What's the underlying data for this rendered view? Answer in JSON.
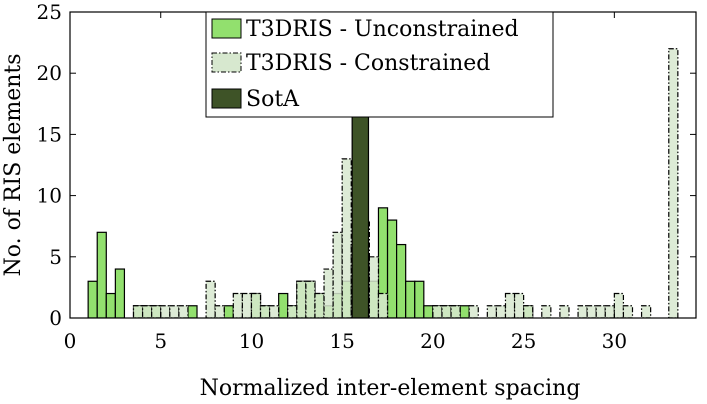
{
  "chart_data": {
    "type": "bar",
    "xlabel": "Normalized inter-element spacing",
    "ylabel": "No. of RIS elements",
    "xlim": [
      0,
      34.5
    ],
    "ylim": [
      0,
      25
    ],
    "xticks": [
      0,
      5,
      10,
      15,
      20,
      25,
      30
    ],
    "yticks": [
      0,
      5,
      10,
      15,
      20,
      25
    ],
    "bin_width": 0.5,
    "grid": false,
    "legend_position": "top-center",
    "series": [
      {
        "name": "T3DRIS - Unconstrained",
        "style": "solid",
        "color": "#92e06e",
        "edge": "#000000",
        "x": [
          1.25,
          1.75,
          2.25,
          2.75,
          3.75,
          4.25,
          4.75,
          6.75,
          8.75,
          10.25,
          10.75,
          11.75,
          12.25,
          12.75,
          13.25,
          13.75,
          14.25,
          14.75,
          15.25,
          16.25,
          16.75,
          17.25,
          17.75,
          18.25,
          18.75,
          19.25,
          19.75,
          20.25,
          20.75,
          21.25,
          21.75,
          25.25
        ],
        "values": [
          3,
          7,
          2,
          4,
          1,
          1,
          1,
          1,
          1,
          2,
          1,
          2,
          1,
          3,
          3,
          2,
          1,
          2,
          3,
          5,
          3,
          9,
          8,
          6,
          3,
          3,
          1,
          1,
          1,
          1,
          1,
          1
        ]
      },
      {
        "name": "T3DRIS - Constrained",
        "style": "dashdot",
        "color": "#d7e8cf",
        "edge": "#000000",
        "x": [
          3.75,
          4.25,
          4.75,
          5.25,
          5.75,
          6.25,
          7.75,
          8.25,
          9.25,
          9.75,
          10.25,
          10.75,
          11.25,
          12.25,
          12.75,
          13.25,
          13.75,
          14.25,
          14.75,
          15.25,
          15.75,
          16.25,
          16.75,
          17.25,
          20.25,
          20.75,
          21.25,
          22.25,
          23.25,
          23.75,
          24.25,
          24.75,
          25.25,
          26.25,
          27.25,
          28.25,
          28.75,
          29.25,
          29.75,
          30.25,
          30.75,
          31.75,
          33.25
        ],
        "values": [
          1,
          1,
          1,
          1,
          1,
          1,
          3,
          1,
          2,
          2,
          2,
          1,
          1,
          1,
          3,
          3,
          2,
          4,
          7,
          13,
          6,
          8,
          5,
          2,
          1,
          1,
          1,
          1,
          1,
          1,
          2,
          2,
          1,
          1,
          1,
          1,
          1,
          1,
          1,
          2,
          1,
          1,
          22
        ]
      },
      {
        "name": "SotA",
        "style": "solid",
        "color": "#3e5327",
        "edge": "#000000",
        "x": [
          16.0
        ],
        "values": [
          27
        ]
      }
    ]
  }
}
